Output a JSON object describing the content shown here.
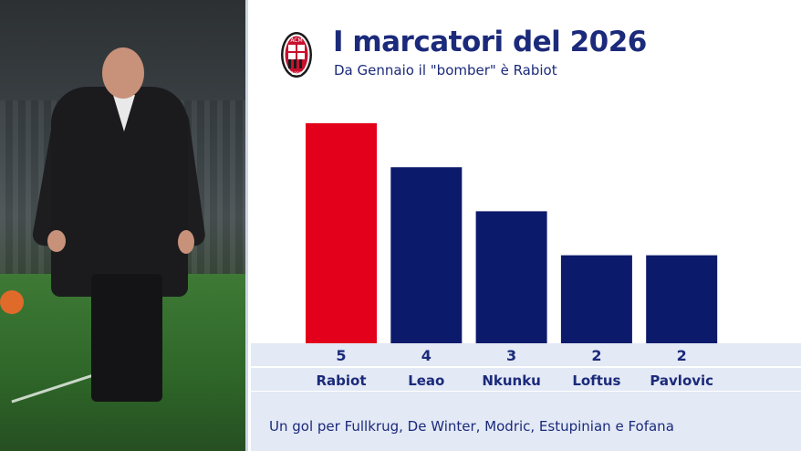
{
  "header": {
    "title": "I marcatori del 2026",
    "subtitle": "Da Gennaio il \"bomber\" è Rabiot",
    "logo_text_top": "ACM",
    "logo_text_bottom": "1899"
  },
  "footer": {
    "note": "Un gol per Fullkrug, De Winter, Modric, Estupinian e Fofana"
  },
  "photo": {
    "icon": "coach-photo"
  },
  "colors": {
    "highlight": "#e3001b",
    "bar": "#0c1a6b",
    "text": "#1b2a7a",
    "band": "#e3e9f5"
  },
  "chart_data": {
    "type": "bar",
    "categories": [
      "Rabiot",
      "Leao",
      "Nkunku",
      "Loftus",
      "Pavlovic"
    ],
    "values": [
      5,
      4,
      3,
      2,
      2
    ],
    "highlight_index": 0,
    "title": "I marcatori del 2026",
    "subtitle": "Da Gennaio il \"bomber\" è Rabiot",
    "xlabel": "",
    "ylabel": "",
    "grid": false,
    "legend": "none"
  }
}
